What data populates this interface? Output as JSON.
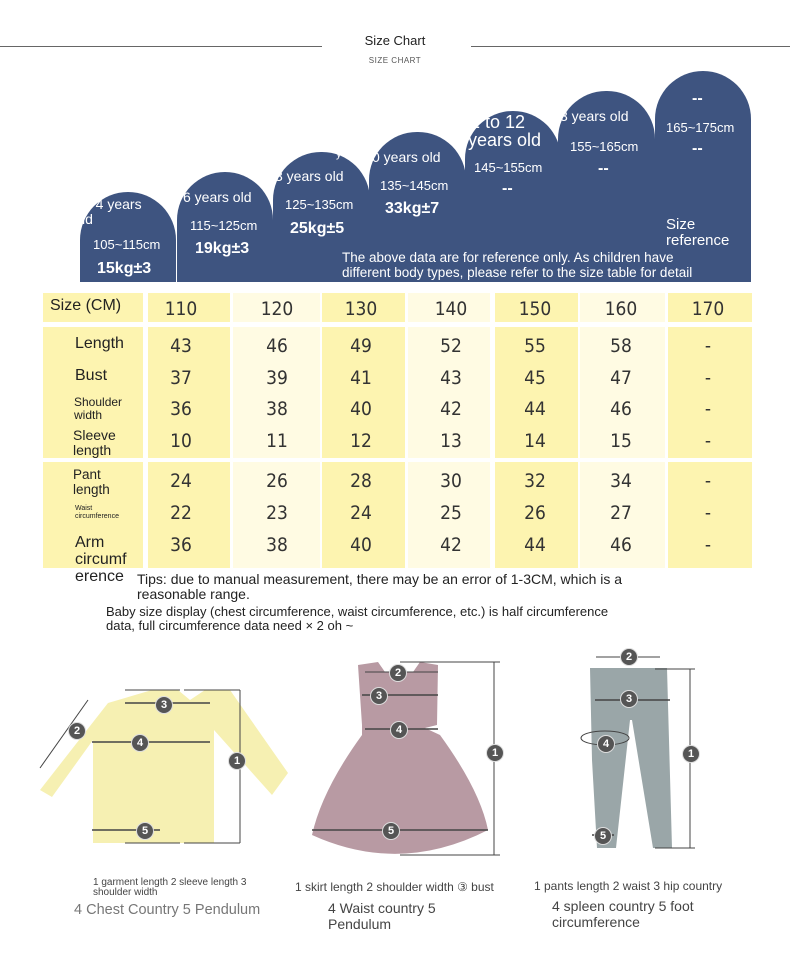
{
  "header": {
    "title": "Size Chart",
    "subtitle": "SIZE CHART"
  },
  "arches": [
    {
      "age": [
        "o 4 years",
        "ld"
      ],
      "height": "105~115cm",
      "weight": "15kg±3"
    },
    {
      "age": [
        "6 years old"
      ],
      "height": "115~125cm",
      "weight": "19kg±3"
    },
    {
      "age": [
        "y",
        "3 years old"
      ],
      "height": "125~135cm",
      "weight": "25kg±5"
    },
    {
      "age": [
        "0 years old"
      ],
      "height": "135~145cm",
      "weight": "33kg±7"
    },
    {
      "age": [
        "1 to 12",
        "years old"
      ],
      "height": "145~155cm",
      "weight": "--"
    },
    {
      "age": [
        "3 years old"
      ],
      "height": "155~165cm",
      "weight": "--"
    },
    {
      "age": [
        "--"
      ],
      "height": "165~175cm",
      "weight": "--"
    }
  ],
  "size_reference": [
    "Size",
    "reference"
  ],
  "reference_note": [
    "The above data are for reference only. As children have",
    "different body types, please refer to the size table for detail"
  ],
  "table": {
    "header_label": "Size (CM)",
    "sizes": [
      "110",
      "120",
      "130",
      "140",
      "150",
      "160",
      "170"
    ],
    "rows": [
      {
        "label": [
          "Length"
        ],
        "values": [
          "43",
          "46",
          "49",
          "52",
          "55",
          "58",
          "-"
        ]
      },
      {
        "label": [
          "Bust"
        ],
        "values": [
          "37",
          "39",
          "41",
          "43",
          "45",
          "47",
          "-"
        ]
      },
      {
        "label": [
          "Shoulder",
          "width"
        ],
        "values": [
          "36",
          "38",
          "40",
          "42",
          "44",
          "46",
          "-"
        ]
      },
      {
        "label": [
          "Sleeve",
          "length"
        ],
        "values": [
          "10",
          "11",
          "12",
          "13",
          "14",
          "15",
          "-"
        ]
      },
      {
        "label": [
          "Pant",
          "length"
        ],
        "values": [
          "24",
          "26",
          "28",
          "30",
          "32",
          "34",
          "-"
        ]
      },
      {
        "label": [
          "Waist",
          "circumference"
        ],
        "values": [
          "22",
          "23",
          "24",
          "25",
          "26",
          "27",
          "-"
        ]
      },
      {
        "label": [
          "Arm",
          "circumf",
          "erence"
        ],
        "values": [
          "36",
          "38",
          "40",
          "42",
          "44",
          "46",
          "-"
        ]
      }
    ]
  },
  "tips": [
    "Tips: due to manual measurement, there may be an error of 1-3CM, which is a",
    "reasonable range."
  ],
  "baby_note": [
    "Baby size display (chest circumference, waist circumference, etc.) is half circumference",
    "data, full circumference data need × 2 oh ~"
  ],
  "garments": [
    {
      "name": "top",
      "color": "#f7f1b0",
      "markers": [
        "1",
        "2",
        "3",
        "4",
        "5"
      ],
      "caption_small": [
        "1 garment length 2 sleeve length 3",
        "shoulder width"
      ],
      "caption_large": [
        "4 Chest Country 5 Pendulum"
      ]
    },
    {
      "name": "dress",
      "color": "#b89aa3",
      "markers": [
        "1",
        "2",
        "3",
        "4",
        "5"
      ],
      "caption_small": [
        "1 skirt length 2 shoulder width ③ bust"
      ],
      "caption_large": [
        "4 Waist country 5",
        "Pendulum"
      ]
    },
    {
      "name": "pants",
      "color": "#9aa6a8",
      "markers": [
        "1",
        "2",
        "3",
        "4",
        "5"
      ],
      "caption_small": [
        "1 pants length 2 waist 3 hip country"
      ],
      "caption_large": [
        "4 spleen country 5 foot",
        "circumference"
      ]
    }
  ],
  "colors": {
    "navy": "#3e5480",
    "yellow": "#fdf4b0",
    "light_yellow": "#fffbe3"
  }
}
